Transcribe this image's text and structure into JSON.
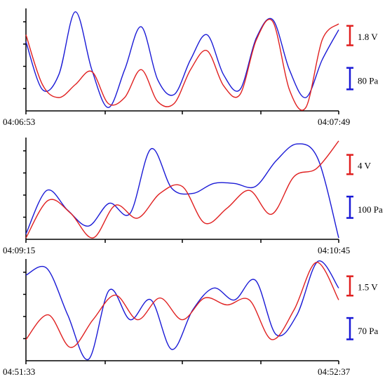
{
  "chart_data": [
    {
      "type": "line",
      "x_start": "04:06:53",
      "x_end": "04:07:49",
      "scale_bars": [
        {
          "label": "1.8 V",
          "color": "#e02020"
        },
        {
          "label": "80 Pa",
          "color": "#1a1ad6"
        }
      ],
      "series": [
        {
          "color": "#1a1ad6",
          "values": [
            0.68,
            0.2,
            0.35,
            0.98,
            0.4,
            0.02,
            0.4,
            0.83,
            0.3,
            0.15,
            0.5,
            0.75,
            0.35,
            0.2,
            0.72,
            0.9,
            0.4,
            0.12,
            0.5,
            0.8
          ]
        },
        {
          "color": "#e02020",
          "values": [
            0.75,
            0.25,
            0.12,
            0.25,
            0.38,
            0.06,
            0.12,
            0.4,
            0.08,
            0.06,
            0.4,
            0.59,
            0.24,
            0.15,
            0.7,
            0.88,
            0.2,
            0.02,
            0.7,
            0.86
          ]
        }
      ]
    },
    {
      "type": "line",
      "x_start": "04:09:15",
      "x_end": "04:10:45",
      "scale_bars": [
        {
          "label": "4 V",
          "color": "#e02020"
        },
        {
          "label": "100 Pa",
          "color": "#1a1ad6"
        }
      ],
      "series": [
        {
          "color": "#1a1ad6",
          "values": [
            0.04,
            0.48,
            0.28,
            0.12,
            0.35,
            0.25,
            0.9,
            0.5,
            0.45,
            0.55,
            0.55,
            0.52,
            0.78,
            0.95,
            0.8,
            0.0
          ]
        },
        {
          "color": "#e02020",
          "values": [
            0.0,
            0.38,
            0.25,
            0.0,
            0.33,
            0.2,
            0.45,
            0.52,
            0.15,
            0.3,
            0.48,
            0.24,
            0.62,
            0.7,
            0.98
          ]
        }
      ]
    },
    {
      "type": "line",
      "x_start": "04:51:33",
      "x_end": "04:52:37",
      "scale_bars": [
        {
          "label": "1.5 V",
          "color": "#e02020"
        },
        {
          "label": "70 Pa",
          "color": "#1a1ad6"
        }
      ],
      "series": [
        {
          "color": "#1a1ad6",
          "values": [
            0.85,
            0.92,
            0.45,
            0.0,
            0.7,
            0.4,
            0.6,
            0.1,
            0.5,
            0.72,
            0.6,
            0.8,
            0.25,
            0.45,
            0.99,
            0.72
          ]
        },
        {
          "color": "#e02020",
          "values": [
            0.2,
            0.45,
            0.12,
            0.4,
            0.65,
            0.4,
            0.62,
            0.4,
            0.62,
            0.55,
            0.6,
            0.2,
            0.5,
            0.98,
            0.6
          ]
        }
      ]
    }
  ]
}
